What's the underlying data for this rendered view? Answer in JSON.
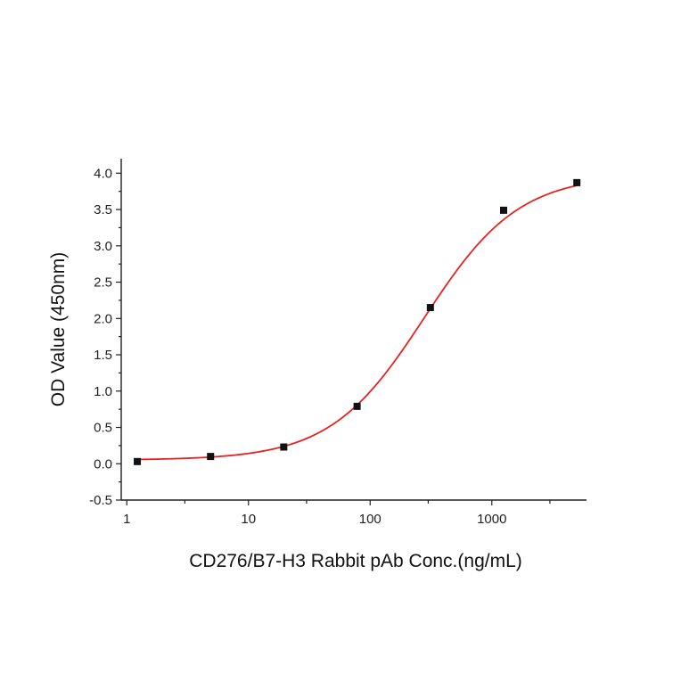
{
  "chart_data": {
    "type": "scatter",
    "title": "",
    "xlabel": "CD276/B7-H3 Rabbit pAb Conc.(ng/mL)",
    "ylabel": "OD Value (450nm)",
    "x_scale": "log",
    "xlim": [
      0.9,
      6000
    ],
    "ylim": [
      -0.5,
      4.2
    ],
    "x_ticks": [
      1,
      10,
      100,
      1000
    ],
    "x_tick_labels": [
      "1",
      "10",
      "100",
      "1000"
    ],
    "y_ticks": [
      -0.5,
      0.0,
      0.5,
      1.0,
      1.5,
      2.0,
      2.5,
      3.0,
      3.5,
      4.0
    ],
    "y_tick_labels": [
      "-0.5",
      "0.0",
      "0.5",
      "1.0",
      "1.5",
      "2.0",
      "2.5",
      "3.0",
      "3.5",
      "4.0"
    ],
    "grid": false,
    "series": [
      {
        "kind": "points",
        "color": "#111111",
        "x": [
          1.22,
          4.88,
          19.5,
          78.1,
          312.5,
          1250,
          5000
        ],
        "y": [
          0.03,
          0.1,
          0.23,
          0.79,
          2.15,
          3.49,
          3.87
        ]
      },
      {
        "kind": "fit-curve",
        "color": "#e8231f",
        "model": "4PL",
        "params": {
          "bottom": 0.05,
          "top": 3.98,
          "ec50": 280,
          "hill": 1.12
        },
        "x_range": [
          1.22,
          5000
        ]
      }
    ]
  }
}
